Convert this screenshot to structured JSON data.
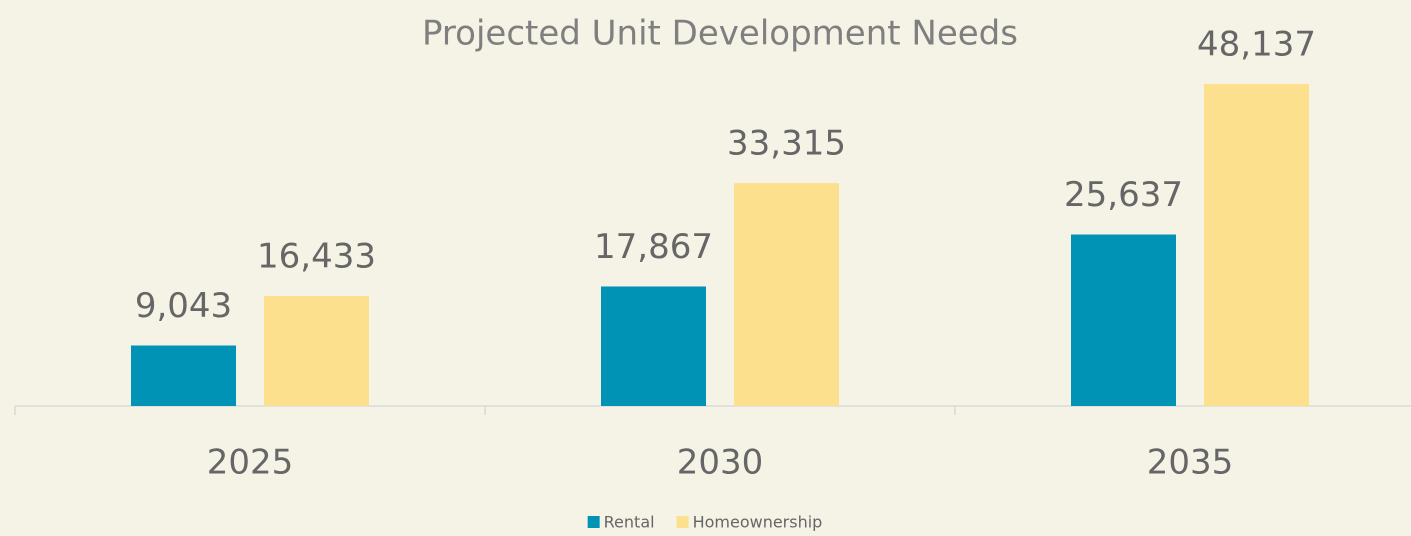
{
  "chart_data": {
    "type": "bar",
    "title": "Projected Unit Development Needs",
    "categories": [
      "2025",
      "2030",
      "2035"
    ],
    "series": [
      {
        "name": "Rental",
        "color": "#0093b5",
        "values": [
          9043,
          17867,
          25637
        ],
        "value_labels": [
          "9,043",
          "17,867",
          "25,637"
        ]
      },
      {
        "name": "Homeownership",
        "color": "#fde08e",
        "values": [
          16433,
          33315,
          48137
        ],
        "value_labels": [
          "16,433",
          "33,315",
          "48,137"
        ]
      }
    ],
    "legend": "bottom"
  }
}
